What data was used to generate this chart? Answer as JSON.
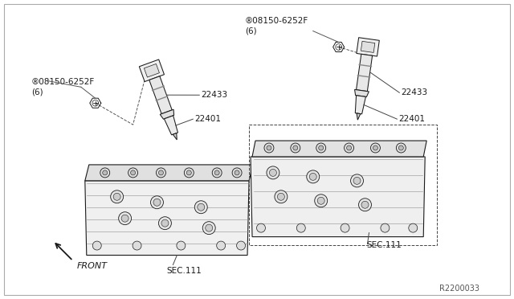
{
  "background_color": "#ffffff",
  "fig_width": 6.4,
  "fig_height": 3.72,
  "dpi": 100,
  "labels": {
    "bolt_left": "®08150-6252F\n(6)",
    "bolt_right": "®08150-6252F\n(6)",
    "coil_left": "22433",
    "coil_right": "22433",
    "plug_left": "22401",
    "plug_right": "22401",
    "sec_left": "SEC.111",
    "sec_right": "SEC.111",
    "front": "FRONT",
    "ref": "R2200033"
  },
  "font_size": 7.5,
  "font_size_ref": 7,
  "line_color": "#1a1a1a",
  "label_color": "#1a1a1a",
  "leader_color": "#555555"
}
